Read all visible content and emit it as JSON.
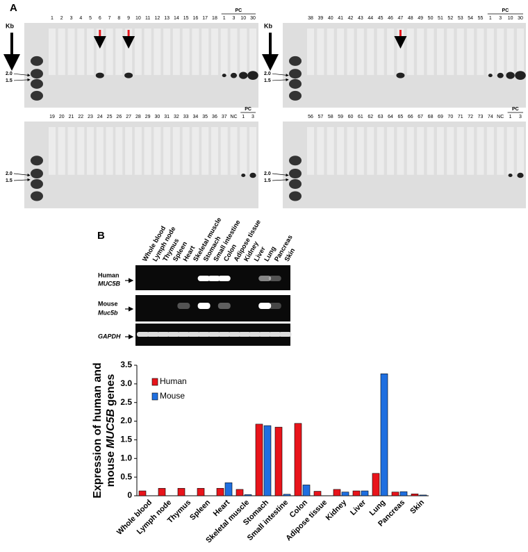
{
  "panel_a": {
    "label": "A",
    "kb": "Kb",
    "size_high": "2.0",
    "size_low": "1.5",
    "blots": [
      {
        "lanes": [
          "1",
          "2",
          "3",
          "4",
          "5",
          "6",
          "7",
          "8",
          "9",
          "10",
          "11",
          "12",
          "13",
          "14",
          "15",
          "16",
          "17",
          "18"
        ],
        "pc_label": "PC",
        "pc_lanes": [
          "1",
          "3",
          "10",
          "30"
        ]
      },
      {
        "lanes": [
          "38",
          "39",
          "40",
          "41",
          "42",
          "43",
          "44",
          "45",
          "46",
          "47",
          "48",
          "49",
          "50",
          "51",
          "52",
          "53",
          "54",
          "55"
        ],
        "pc_label": "PC",
        "pc_lanes": [
          "1",
          "3",
          "10",
          "30"
        ]
      },
      {
        "lanes": [
          "19",
          "20",
          "21",
          "22",
          "23",
          "24",
          "25",
          "26",
          "27",
          "28",
          "29",
          "30",
          "31",
          "32",
          "33",
          "34",
          "35",
          "36",
          "37",
          "NC"
        ],
        "pc_label": "PC",
        "pc_lanes": [
          "1",
          "3"
        ]
      },
      {
        "lanes": [
          "56",
          "57",
          "58",
          "59",
          "60",
          "61",
          "62",
          "63",
          "64",
          "65",
          "66",
          "67",
          "68",
          "69",
          "70",
          "71",
          "72",
          "73",
          "74",
          "NC"
        ],
        "pc_label": "PC",
        "pc_lanes": [
          "1",
          "3"
        ]
      }
    ]
  },
  "panel_b": {
    "label": "B",
    "gel_rows": {
      "human": "Human",
      "human_gene": "MUC5B",
      "mouse": "Mouse",
      "mouse_gene": "Muc5b",
      "control": "GAPDH"
    }
  },
  "chart_data": {
    "type": "bar",
    "ylabel_line1": "Expression of human and",
    "ylabel_pre": "mouse",
    "ylabel_gene": "MUC5B",
    "ylabel_post": "genes",
    "categories": [
      "Whole blood",
      "Lymph node",
      "Thymus",
      "Spleen",
      "Heart",
      "Skeletal muscle",
      "Stomach",
      "Small intestine",
      "Colon",
      "Adipose tissue",
      "Kidney",
      "Liver",
      "Lung",
      "Pancreas",
      "Skin"
    ],
    "series": [
      {
        "name": "Human",
        "color": "#e8141b",
        "values": [
          0.13,
          0.2,
          0.2,
          0.2,
          0.2,
          0.17,
          1.92,
          1.84,
          1.94,
          0.12,
          0.17,
          0.13,
          0.6,
          0.1,
          0.05
        ]
      },
      {
        "name": "Mouse",
        "color": "#1f6fe0",
        "values": [
          0,
          0,
          0,
          0,
          0.35,
          0.03,
          1.88,
          0.04,
          0.29,
          0,
          0.1,
          0.13,
          3.27,
          0.11,
          0.02
        ]
      }
    ],
    "ylim": [
      0,
      3.5
    ],
    "yticks": [
      0,
      0.5,
      {
        "value": 1,
        "label": "1.0"
      },
      1.5,
      {
        "value": 2,
        "label": "2.0"
      },
      2.5,
      {
        "value": 3,
        "label": "3.0"
      },
      3.5
    ],
    "legend": "top-left"
  }
}
